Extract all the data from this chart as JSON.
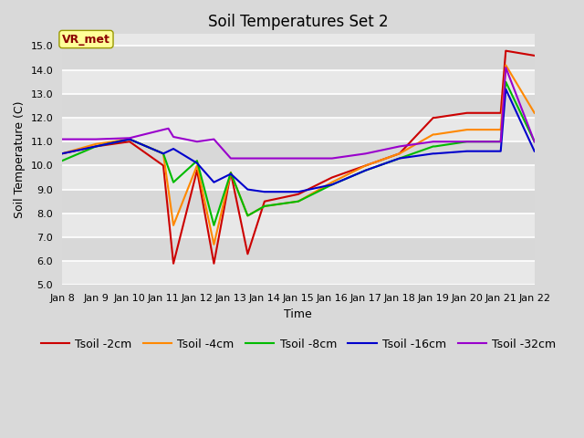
{
  "title": "Soil Temperatures Set 2",
  "xlabel": "Time",
  "ylabel": "Soil Temperature (C)",
  "ylim": [
    5.0,
    15.5
  ],
  "yticks": [
    5.0,
    6.0,
    7.0,
    8.0,
    9.0,
    10.0,
    11.0,
    12.0,
    13.0,
    14.0,
    15.0
  ],
  "ytick_labels": [
    "5.0",
    "6.0",
    "7.0",
    "8.0",
    "9.0",
    "10.0",
    "11.0",
    "12.0",
    "13.0",
    "14.0",
    "15.0"
  ],
  "background_color": "#d9d9d9",
  "plot_bg_color": "#e8e8e8",
  "annotation_text": "VR_met",
  "annotation_color": "#8B0000",
  "annotation_bg": "#ffff99",
  "annotation_edge": "#999900",
  "series": [
    {
      "label": "Tsoil -2cm",
      "color": "#cc0000",
      "x_days": [
        8,
        9,
        10,
        11,
        11.3,
        12,
        12.5,
        13,
        13.5,
        14,
        15,
        16,
        17,
        18,
        19,
        19.05,
        20,
        21,
        21.15,
        22
      ],
      "y": [
        10.5,
        10.8,
        11.0,
        10.0,
        5.9,
        9.8,
        5.9,
        9.7,
        6.3,
        8.5,
        8.8,
        9.5,
        10.0,
        10.5,
        12.0,
        12.0,
        12.2,
        12.2,
        14.8,
        14.6
      ]
    },
    {
      "label": "Tsoil -4cm",
      "color": "#ff8800",
      "x_days": [
        8,
        9,
        10,
        11,
        11.3,
        12,
        12.5,
        13,
        13.5,
        14,
        15,
        16,
        17,
        18,
        19,
        19.05,
        20,
        21,
        21.15,
        22
      ],
      "y": [
        10.5,
        10.9,
        11.1,
        10.5,
        7.5,
        10.0,
        6.7,
        9.7,
        7.9,
        8.3,
        8.5,
        9.3,
        10.0,
        10.5,
        11.3,
        11.3,
        11.5,
        11.5,
        14.2,
        12.2
      ]
    },
    {
      "label": "Tsoil -8cm",
      "color": "#00bb00",
      "x_days": [
        8,
        9,
        10,
        11,
        11.3,
        12,
        12.5,
        13,
        13.5,
        14,
        15,
        16,
        17,
        18,
        19,
        19.05,
        20,
        21,
        21.15,
        22
      ],
      "y": [
        10.2,
        10.8,
        11.1,
        10.5,
        9.3,
        10.2,
        7.5,
        9.7,
        7.9,
        8.3,
        8.5,
        9.2,
        9.8,
        10.3,
        10.8,
        10.8,
        11.0,
        11.0,
        13.5,
        11.0
      ]
    },
    {
      "label": "Tsoil -16cm",
      "color": "#0000cc",
      "x_days": [
        8,
        9,
        10,
        11,
        11.3,
        12,
        12.5,
        13,
        13.5,
        14,
        15,
        16,
        17,
        18,
        19,
        19.05,
        20,
        21,
        21.15,
        22
      ],
      "y": [
        10.5,
        10.8,
        11.1,
        10.5,
        10.7,
        10.1,
        9.3,
        9.65,
        9.0,
        8.9,
        8.9,
        9.2,
        9.8,
        10.3,
        10.5,
        10.5,
        10.6,
        10.6,
        13.2,
        10.6
      ]
    },
    {
      "label": "Tsoil -32cm",
      "color": "#9900cc",
      "x_days": [
        8,
        9,
        10,
        11,
        11.15,
        11.3,
        12,
        12.5,
        13,
        13.2,
        14,
        15,
        16,
        17,
        18,
        19,
        20,
        21,
        21.15,
        22
      ],
      "y": [
        11.1,
        11.1,
        11.15,
        11.5,
        11.55,
        11.2,
        11.0,
        11.1,
        10.3,
        10.3,
        10.3,
        10.3,
        10.3,
        10.5,
        10.8,
        11.0,
        11.0,
        11.0,
        14.1,
        11.0
      ]
    }
  ],
  "xtick_labels": [
    "Jan 8",
    "Jan 9",
    "Jan 10",
    "Jan 11",
    "Jan 12",
    "Jan 13",
    "Jan 14",
    "Jan 15",
    "Jan 16",
    "Jan 17",
    "Jan 18",
    "Jan 19",
    "Jan 20",
    "Jan 21",
    "Jan 22"
  ],
  "xtick_days": [
    8,
    9,
    10,
    11,
    12,
    13,
    14,
    15,
    16,
    17,
    18,
    19,
    20,
    21,
    22
  ],
  "title_fontsize": 12,
  "axis_label_fontsize": 9,
  "tick_fontsize": 8,
  "legend_fontsize": 9,
  "linewidth": 1.5,
  "grid_color": "#ffffff",
  "grid_linewidth": 1.2,
  "band_colors": [
    "#e8e8e8",
    "#d8d8d8"
  ]
}
